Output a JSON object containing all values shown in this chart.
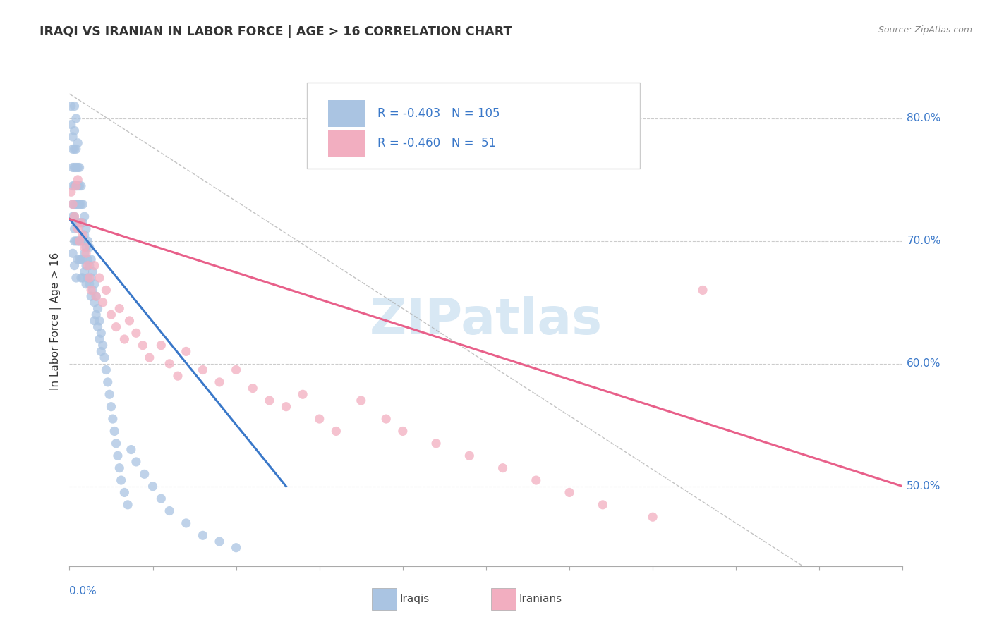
{
  "title": "IRAQI VS IRANIAN IN LABOR FORCE | AGE > 16 CORRELATION CHART",
  "source_text": "Source: ZipAtlas.com",
  "ylabel": "In Labor Force | Age > 16",
  "y_ticks_pct": [
    50.0,
    60.0,
    70.0,
    80.0
  ],
  "x_min": 0.0,
  "x_max": 0.5,
  "y_min": 0.435,
  "y_max": 0.835,
  "iraqis_color": "#aac4e2",
  "iranians_color": "#f2aec0",
  "iraqis_line_color": "#3a78c9",
  "iranians_line_color": "#e8608a",
  "watermark_color": "#d8e8f4",
  "iraqis_R": "-0.403",
  "iraqis_N": "105",
  "iranians_R": "-0.460",
  "iranians_N": "51",
  "iraqis_scatter_x": [
    0.001,
    0.001,
    0.002,
    0.002,
    0.002,
    0.002,
    0.002,
    0.002,
    0.003,
    0.003,
    0.003,
    0.003,
    0.003,
    0.003,
    0.003,
    0.003,
    0.003,
    0.004,
    0.004,
    0.004,
    0.004,
    0.004,
    0.004,
    0.004,
    0.005,
    0.005,
    0.005,
    0.005,
    0.005,
    0.005,
    0.005,
    0.006,
    0.006,
    0.006,
    0.006,
    0.006,
    0.006,
    0.007,
    0.007,
    0.007,
    0.007,
    0.007,
    0.007,
    0.008,
    0.008,
    0.008,
    0.008,
    0.008,
    0.009,
    0.009,
    0.009,
    0.009,
    0.01,
    0.01,
    0.01,
    0.01,
    0.011,
    0.011,
    0.011,
    0.012,
    0.012,
    0.012,
    0.013,
    0.013,
    0.013,
    0.014,
    0.014,
    0.015,
    0.015,
    0.015,
    0.016,
    0.016,
    0.017,
    0.017,
    0.018,
    0.018,
    0.019,
    0.019,
    0.02,
    0.021,
    0.022,
    0.023,
    0.024,
    0.025,
    0.026,
    0.027,
    0.028,
    0.029,
    0.03,
    0.031,
    0.033,
    0.035,
    0.037,
    0.04,
    0.045,
    0.05,
    0.055,
    0.06,
    0.07,
    0.08,
    0.09,
    0.1,
    0.002,
    0.003,
    0.004
  ],
  "iraqis_scatter_y": [
    0.81,
    0.795,
    0.785,
    0.775,
    0.76,
    0.745,
    0.73,
    0.72,
    0.81,
    0.79,
    0.775,
    0.76,
    0.745,
    0.73,
    0.72,
    0.71,
    0.7,
    0.8,
    0.775,
    0.76,
    0.745,
    0.73,
    0.715,
    0.7,
    0.78,
    0.76,
    0.745,
    0.73,
    0.715,
    0.7,
    0.685,
    0.76,
    0.745,
    0.73,
    0.715,
    0.7,
    0.685,
    0.745,
    0.73,
    0.715,
    0.7,
    0.685,
    0.67,
    0.73,
    0.715,
    0.7,
    0.685,
    0.67,
    0.72,
    0.705,
    0.69,
    0.675,
    0.71,
    0.695,
    0.68,
    0.665,
    0.7,
    0.685,
    0.67,
    0.695,
    0.68,
    0.665,
    0.685,
    0.67,
    0.655,
    0.675,
    0.66,
    0.665,
    0.65,
    0.635,
    0.655,
    0.64,
    0.645,
    0.63,
    0.635,
    0.62,
    0.625,
    0.61,
    0.615,
    0.605,
    0.595,
    0.585,
    0.575,
    0.565,
    0.555,
    0.545,
    0.535,
    0.525,
    0.515,
    0.505,
    0.495,
    0.485,
    0.53,
    0.52,
    0.51,
    0.5,
    0.49,
    0.48,
    0.47,
    0.46,
    0.455,
    0.45,
    0.69,
    0.68,
    0.67
  ],
  "iranians_scatter_x": [
    0.001,
    0.002,
    0.003,
    0.004,
    0.005,
    0.005,
    0.006,
    0.007,
    0.008,
    0.009,
    0.01,
    0.011,
    0.012,
    0.013,
    0.015,
    0.016,
    0.018,
    0.02,
    0.022,
    0.025,
    0.028,
    0.03,
    0.033,
    0.036,
    0.04,
    0.044,
    0.048,
    0.055,
    0.06,
    0.065,
    0.07,
    0.08,
    0.09,
    0.1,
    0.11,
    0.12,
    0.13,
    0.14,
    0.15,
    0.16,
    0.175,
    0.19,
    0.2,
    0.22,
    0.24,
    0.26,
    0.28,
    0.3,
    0.32,
    0.35,
    0.38
  ],
  "iranians_scatter_y": [
    0.74,
    0.73,
    0.72,
    0.745,
    0.71,
    0.75,
    0.7,
    0.715,
    0.705,
    0.695,
    0.69,
    0.68,
    0.67,
    0.66,
    0.68,
    0.655,
    0.67,
    0.65,
    0.66,
    0.64,
    0.63,
    0.645,
    0.62,
    0.635,
    0.625,
    0.615,
    0.605,
    0.615,
    0.6,
    0.59,
    0.61,
    0.595,
    0.585,
    0.595,
    0.58,
    0.57,
    0.565,
    0.575,
    0.555,
    0.545,
    0.57,
    0.555,
    0.545,
    0.535,
    0.525,
    0.515,
    0.505,
    0.495,
    0.485,
    0.475,
    0.66
  ],
  "iraqis_trend_x": [
    0.0,
    0.13
  ],
  "iraqis_trend_y": [
    0.718,
    0.5
  ],
  "iranians_trend_x": [
    0.0,
    0.5
  ],
  "iranians_trend_y": [
    0.718,
    0.5
  ],
  "ref_line_x": [
    0.0,
    0.44
  ],
  "ref_line_y": [
    0.82,
    0.435
  ]
}
